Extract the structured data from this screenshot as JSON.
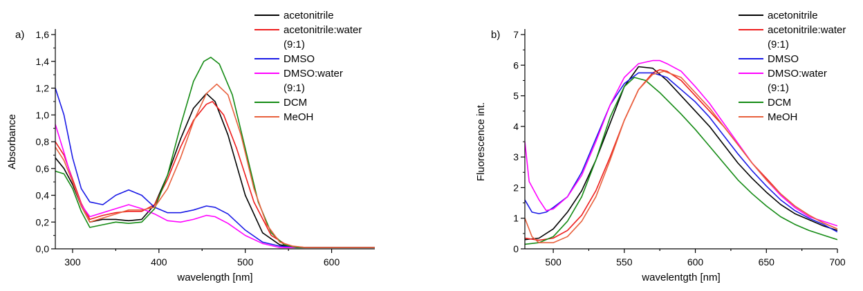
{
  "chart_data": [
    {
      "type": "line",
      "panel_label": "a)",
      "xlabel": "wavelength [nm]",
      "ylabel": "Absorbance",
      "xlim": [
        280,
        650
      ],
      "ylim": [
        0.0,
        1.6
      ],
      "x_ticks": [
        300,
        400,
        500,
        600
      ],
      "y_ticks": [
        0.0,
        0.2,
        0.4,
        0.6,
        0.8,
        1.0,
        1.2,
        1.4,
        1.6
      ],
      "x_tick_labels": [
        "300",
        "400",
        "500",
        "600"
      ],
      "y_tick_labels": [
        "0,0",
        "0,2",
        "0,4",
        "0,6",
        "0,8",
        "1,0",
        "1,2",
        "1,4",
        "1,6"
      ],
      "legend_position": "top-right",
      "grid": false,
      "series": [
        {
          "name": "acetonitrile",
          "color": "#000000",
          "x": [
            280,
            290,
            300,
            310,
            320,
            335,
            350,
            365,
            380,
            395,
            410,
            425,
            440,
            455,
            465,
            480,
            500,
            520,
            540,
            560,
            650
          ],
          "y": [
            0.68,
            0.6,
            0.48,
            0.32,
            0.2,
            0.22,
            0.22,
            0.21,
            0.22,
            0.33,
            0.55,
            0.82,
            1.05,
            1.16,
            1.1,
            0.85,
            0.4,
            0.12,
            0.03,
            0.01,
            0.01
          ]
        },
        {
          "name": "acetonitrile:water (9:1)",
          "color": "#ee1c1c",
          "x": [
            280,
            290,
            300,
            310,
            320,
            335,
            350,
            365,
            380,
            395,
            410,
            425,
            440,
            455,
            462,
            475,
            490,
            510,
            530,
            550,
            570,
            650
          ],
          "y": [
            0.8,
            0.7,
            0.52,
            0.34,
            0.22,
            0.25,
            0.27,
            0.28,
            0.28,
            0.33,
            0.52,
            0.76,
            0.96,
            1.08,
            1.1,
            1.0,
            0.75,
            0.35,
            0.1,
            0.02,
            0.01,
            0.01
          ]
        },
        {
          "name": "DMSO",
          "color": "#1a1ae6",
          "x": [
            280,
            290,
            300,
            310,
            320,
            335,
            350,
            365,
            380,
            395,
            410,
            425,
            440,
            455,
            465,
            480,
            500,
            520,
            540,
            560,
            650
          ],
          "y": [
            1.2,
            1.0,
            0.68,
            0.45,
            0.35,
            0.33,
            0.4,
            0.44,
            0.4,
            0.31,
            0.27,
            0.27,
            0.29,
            0.32,
            0.31,
            0.26,
            0.14,
            0.05,
            0.02,
            0.01,
            0.01
          ]
        },
        {
          "name": "DMSO:water (9:1)",
          "color": "#ff00ff",
          "x": [
            280,
            290,
            300,
            310,
            320,
            335,
            350,
            365,
            380,
            395,
            410,
            425,
            440,
            455,
            465,
            480,
            500,
            520,
            540,
            560,
            650
          ],
          "y": [
            0.93,
            0.72,
            0.5,
            0.33,
            0.24,
            0.27,
            0.3,
            0.33,
            0.3,
            0.26,
            0.21,
            0.2,
            0.22,
            0.25,
            0.24,
            0.19,
            0.1,
            0.04,
            0.01,
            0.01,
            0.01
          ]
        },
        {
          "name": "DCM",
          "color": "#138a13",
          "x": [
            280,
            290,
            300,
            310,
            320,
            335,
            350,
            365,
            380,
            395,
            410,
            425,
            440,
            452,
            460,
            470,
            485,
            500,
            515,
            530,
            545,
            560,
            650
          ],
          "y": [
            0.58,
            0.56,
            0.45,
            0.28,
            0.16,
            0.18,
            0.2,
            0.19,
            0.2,
            0.3,
            0.55,
            0.92,
            1.25,
            1.4,
            1.43,
            1.38,
            1.15,
            0.75,
            0.35,
            0.12,
            0.03,
            0.01,
            0.01
          ]
        },
        {
          "name": "MeOH",
          "color": "#e8603c",
          "x": [
            280,
            290,
            300,
            310,
            320,
            335,
            350,
            365,
            380,
            395,
            410,
            425,
            440,
            455,
            467,
            480,
            495,
            510,
            525,
            540,
            555,
            570,
            650
          ],
          "y": [
            0.76,
            0.66,
            0.5,
            0.32,
            0.2,
            0.23,
            0.26,
            0.29,
            0.29,
            0.31,
            0.45,
            0.68,
            0.95,
            1.16,
            1.23,
            1.15,
            0.85,
            0.45,
            0.18,
            0.05,
            0.02,
            0.01,
            0.01
          ]
        }
      ]
    },
    {
      "type": "line",
      "panel_label": "b)",
      "xlabel": "wavelentgth [nm]",
      "ylabel": "Fluorescence int.",
      "xlim": [
        480,
        700
      ],
      "ylim": [
        0,
        7
      ],
      "x_ticks": [
        500,
        550,
        600,
        650,
        700
      ],
      "y_ticks": [
        0,
        1,
        2,
        3,
        4,
        5,
        6,
        7
      ],
      "x_tick_labels": [
        "500",
        "550",
        "600",
        "650",
        "700"
      ],
      "y_tick_labels": [
        "0",
        "1",
        "2",
        "3",
        "4",
        "5",
        "6",
        "7"
      ],
      "legend_position": "top-right",
      "grid": false,
      "series": [
        {
          "name": "acetonitrile",
          "color": "#000000",
          "x": [
            480,
            490,
            500,
            510,
            520,
            530,
            540,
            550,
            560,
            570,
            580,
            590,
            600,
            610,
            620,
            630,
            640,
            650,
            660,
            670,
            680,
            690,
            700
          ],
          "y": [
            0.3,
            0.35,
            0.65,
            1.2,
            1.9,
            2.9,
            4.1,
            5.3,
            5.95,
            5.9,
            5.5,
            5.0,
            4.5,
            4.0,
            3.4,
            2.8,
            2.3,
            1.85,
            1.45,
            1.15,
            0.95,
            0.75,
            0.6
          ]
        },
        {
          "name": "acetonitrile:water (9:1)",
          "color": "#ee1c1c",
          "x": [
            480,
            490,
            500,
            510,
            520,
            530,
            540,
            550,
            560,
            570,
            575,
            580,
            590,
            600,
            610,
            620,
            630,
            640,
            650,
            660,
            670,
            680,
            690,
            700
          ],
          "y": [
            0.35,
            0.28,
            0.35,
            0.6,
            1.1,
            1.9,
            3.0,
            4.2,
            5.2,
            5.75,
            5.85,
            5.8,
            5.5,
            5.0,
            4.5,
            4.0,
            3.4,
            2.8,
            2.3,
            1.8,
            1.4,
            1.1,
            0.85,
            0.65
          ]
        },
        {
          "name": "DMSO",
          "color": "#1a1ae6",
          "x": [
            480,
            485,
            490,
            495,
            500,
            510,
            520,
            530,
            540,
            550,
            560,
            570,
            580,
            590,
            600,
            610,
            620,
            630,
            640,
            650,
            660,
            670,
            680,
            690,
            700
          ],
          "y": [
            1.6,
            1.2,
            1.15,
            1.2,
            1.35,
            1.7,
            2.5,
            3.6,
            4.7,
            5.4,
            5.75,
            5.75,
            5.6,
            5.2,
            4.8,
            4.3,
            3.7,
            3.1,
            2.55,
            2.05,
            1.6,
            1.25,
            1.0,
            0.8,
            0.55
          ]
        },
        {
          "name": "DMSO:water (9:1)",
          "color": "#ff00ff",
          "x": [
            480,
            483,
            490,
            495,
            500,
            510,
            520,
            530,
            540,
            550,
            560,
            570,
            575,
            580,
            590,
            600,
            610,
            620,
            630,
            640,
            650,
            660,
            670,
            680,
            690,
            700
          ],
          "y": [
            3.5,
            2.2,
            1.6,
            1.25,
            1.3,
            1.7,
            2.4,
            3.5,
            4.7,
            5.6,
            6.05,
            6.15,
            6.15,
            6.05,
            5.8,
            5.3,
            4.75,
            4.1,
            3.45,
            2.8,
            2.25,
            1.75,
            1.35,
            1.05,
            0.9,
            0.75
          ]
        },
        {
          "name": "DCM",
          "color": "#138a13",
          "x": [
            480,
            490,
            500,
            510,
            520,
            530,
            540,
            550,
            557,
            565,
            575,
            590,
            600,
            610,
            620,
            630,
            640,
            650,
            660,
            670,
            680,
            690,
            700
          ],
          "y": [
            0.15,
            0.2,
            0.4,
            0.9,
            1.7,
            2.9,
            4.3,
            5.3,
            5.6,
            5.5,
            5.1,
            4.4,
            3.9,
            3.35,
            2.8,
            2.25,
            1.8,
            1.4,
            1.05,
            0.8,
            0.6,
            0.45,
            0.3
          ]
        },
        {
          "name": "MeOH",
          "color": "#e8603c",
          "x": [
            480,
            485,
            490,
            500,
            510,
            520,
            530,
            540,
            550,
            560,
            570,
            578,
            590,
            600,
            610,
            620,
            630,
            640,
            650,
            660,
            670,
            680,
            690,
            700
          ],
          "y": [
            1.0,
            0.4,
            0.2,
            0.2,
            0.4,
            0.9,
            1.7,
            2.9,
            4.2,
            5.2,
            5.7,
            5.8,
            5.6,
            5.1,
            4.6,
            4.0,
            3.4,
            2.8,
            2.25,
            1.8,
            1.4,
            1.1,
            0.85,
            0.65
          ]
        }
      ]
    }
  ]
}
